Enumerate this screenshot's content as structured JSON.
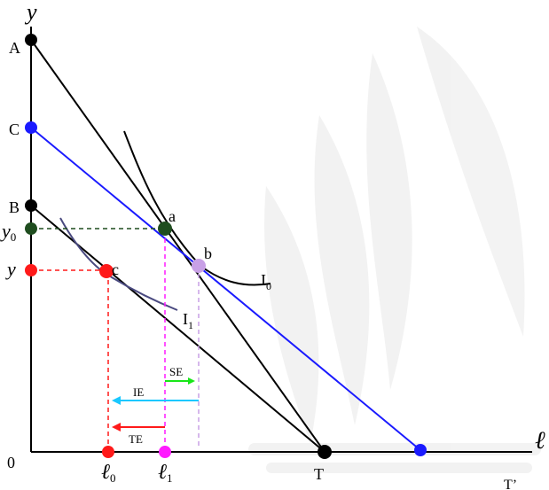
{
  "diagram": {
    "axes": {
      "y_label": "y",
      "x_label": "ℓ",
      "origin_label": "0"
    },
    "y_axis_points": [
      {
        "id": "A",
        "label": "A",
        "color": "#000000"
      },
      {
        "id": "C",
        "label": "C",
        "color": "#1a1aff"
      },
      {
        "id": "B",
        "label": "B",
        "color": "#000000"
      },
      {
        "id": "y0",
        "label": "y",
        "sub": "0",
        "color": "#1f4d1f"
      },
      {
        "id": "y1",
        "label": "y",
        "sub": "",
        "color": "#ff1a1a"
      }
    ],
    "x_axis_points": [
      {
        "id": "l0",
        "label": "ℓ",
        "sub": "0",
        "color": "#ff1a1a"
      },
      {
        "id": "l1",
        "label": "ℓ",
        "sub": "1",
        "color": "#ff1aff"
      },
      {
        "id": "T",
        "label": "T",
        "color": "#000000"
      },
      {
        "id": "Tp",
        "label": "T’",
        "color": "#1a1aff"
      }
    ],
    "curve_points": [
      {
        "id": "a",
        "label": "a",
        "color": "#1f4d1f"
      },
      {
        "id": "b",
        "label": "b",
        "color": "#c8a0e6"
      },
      {
        "id": "c",
        "label": "c",
        "color": "#ff1a1a"
      }
    ],
    "indifference_curves": [
      {
        "id": "I0",
        "label": "I",
        "sub": "0"
      },
      {
        "id": "I1",
        "label": "I",
        "sub": "1"
      }
    ],
    "effects": [
      {
        "id": "SE",
        "label": "SE",
        "color": "#19e619"
      },
      {
        "id": "IE",
        "label": "IE",
        "color": "#1ac8ff",
        "text_color": "#3333aa"
      },
      {
        "id": "TE",
        "label": "TE",
        "color": "#ff1a1a"
      }
    ],
    "colors": {
      "budget_black": "#000000",
      "budget_blue": "#1a1aff",
      "guide_green": "#1f4d1f",
      "guide_red": "#ff1a1a",
      "guide_magenta": "#ff1aff",
      "guide_lavender": "#c8a0e6",
      "curve_I1": "#4a4a80"
    }
  }
}
